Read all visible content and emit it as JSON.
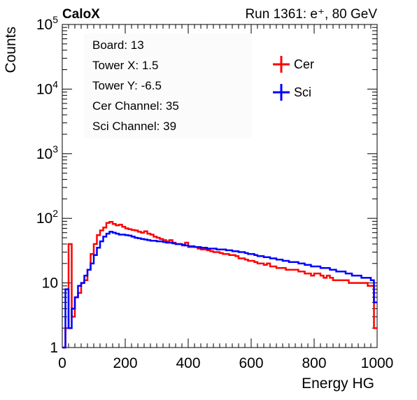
{
  "header": {
    "left": "CaloX",
    "right": "Run 1361: e⁺, 80 GeV"
  },
  "info": [
    "Board: 13",
    "Tower X: 1.5",
    "Tower Y: -6.5",
    "Cer Channel: 35",
    "Sci Channel: 39"
  ],
  "legend": [
    {
      "name": "Cer",
      "color": "#ff0000"
    },
    {
      "name": "Sci",
      "color": "#0000ff"
    }
  ],
  "chart_data": {
    "type": "line",
    "title": "",
    "xlabel": "Energy HG",
    "ylabel": "Counts",
    "xlim": [
      0,
      1000
    ],
    "ylim": [
      1,
      100000
    ],
    "yscale": "log",
    "grid": false,
    "legend_position": "top-right",
    "x_ticks": [
      0,
      200,
      400,
      600,
      800,
      1000
    ],
    "y_ticks": [
      "1",
      "10",
      "10^2",
      "10^3",
      "10^4",
      "10^5"
    ],
    "series": [
      {
        "name": "Cer",
        "color": "#ff0000",
        "x": [
          5,
          15,
          25,
          35,
          45,
          55,
          65,
          75,
          85,
          95,
          105,
          115,
          125,
          135,
          145,
          155,
          165,
          175,
          185,
          195,
          205,
          215,
          225,
          235,
          245,
          255,
          265,
          275,
          285,
          295,
          305,
          315,
          325,
          335,
          345,
          355,
          365,
          375,
          385,
          395,
          405,
          415,
          425,
          435,
          445,
          455,
          465,
          475,
          485,
          495,
          505,
          515,
          525,
          535,
          545,
          555,
          565,
          575,
          585,
          595,
          605,
          615,
          625,
          635,
          645,
          655,
          665,
          675,
          685,
          695,
          705,
          715,
          725,
          735,
          745,
          755,
          765,
          775,
          785,
          795,
          805,
          815,
          825,
          835,
          845,
          855,
          865,
          875,
          885,
          895,
          905,
          915,
          925,
          935,
          945,
          955,
          965,
          975,
          985,
          995
        ],
        "y": [
          1,
          2,
          40,
          3,
          6,
          7,
          10,
          11,
          16,
          28,
          40,
          55,
          65,
          72,
          85,
          88,
          82,
          78,
          80,
          74,
          70,
          68,
          66,
          65,
          62,
          60,
          63,
          58,
          56,
          52,
          50,
          48,
          46,
          44,
          46,
          42,
          40,
          40,
          38,
          42,
          36,
          36,
          36,
          34,
          33,
          33,
          32,
          31,
          30,
          30,
          29,
          28,
          28,
          27,
          27,
          26,
          24,
          24,
          23,
          22,
          22,
          21,
          20,
          20,
          19,
          20,
          18,
          18,
          17,
          17,
          17,
          16,
          16,
          16,
          16,
          15,
          15,
          14,
          14,
          13,
          14,
          14,
          13,
          12,
          13,
          12,
          11,
          11,
          11,
          11,
          11,
          10,
          10,
          10,
          10,
          10,
          10,
          9,
          9,
          2
        ]
      },
      {
        "name": "Sci",
        "color": "#0000ff",
        "x": [
          5,
          15,
          25,
          35,
          45,
          55,
          65,
          75,
          85,
          95,
          105,
          115,
          125,
          135,
          145,
          155,
          165,
          175,
          185,
          195,
          205,
          215,
          225,
          235,
          245,
          255,
          265,
          275,
          285,
          295,
          305,
          315,
          325,
          335,
          345,
          355,
          365,
          375,
          385,
          395,
          405,
          415,
          425,
          435,
          445,
          455,
          465,
          475,
          485,
          495,
          505,
          515,
          525,
          535,
          545,
          555,
          565,
          575,
          585,
          595,
          605,
          615,
          625,
          635,
          645,
          655,
          665,
          675,
          685,
          695,
          705,
          715,
          725,
          735,
          745,
          755,
          765,
          775,
          785,
          795,
          805,
          815,
          825,
          835,
          845,
          855,
          865,
          875,
          885,
          895,
          905,
          915,
          925,
          935,
          945,
          955,
          965,
          975,
          985,
          995
        ],
        "y": [
          1,
          8,
          2,
          4,
          6,
          9,
          10,
          13,
          16,
          20,
          27,
          35,
          44,
          52,
          58,
          62,
          60,
          58,
          56,
          56,
          55,
          54,
          52,
          50,
          49,
          48,
          47,
          46,
          45,
          45,
          44,
          44,
          43,
          42,
          42,
          41,
          40,
          40,
          39,
          38,
          37,
          37,
          36,
          36,
          35,
          35,
          34,
          34,
          34,
          33,
          33,
          33,
          32,
          32,
          31,
          31,
          30,
          30,
          29,
          28,
          28,
          27,
          26,
          26,
          25,
          25,
          24,
          24,
          23,
          23,
          22,
          22,
          21,
          21,
          21,
          20,
          20,
          19,
          19,
          18,
          18,
          18,
          17,
          17,
          17,
          16,
          16,
          15,
          15,
          15,
          14,
          14,
          13,
          13,
          13,
          12,
          12,
          12,
          11,
          5
        ]
      }
    ]
  }
}
